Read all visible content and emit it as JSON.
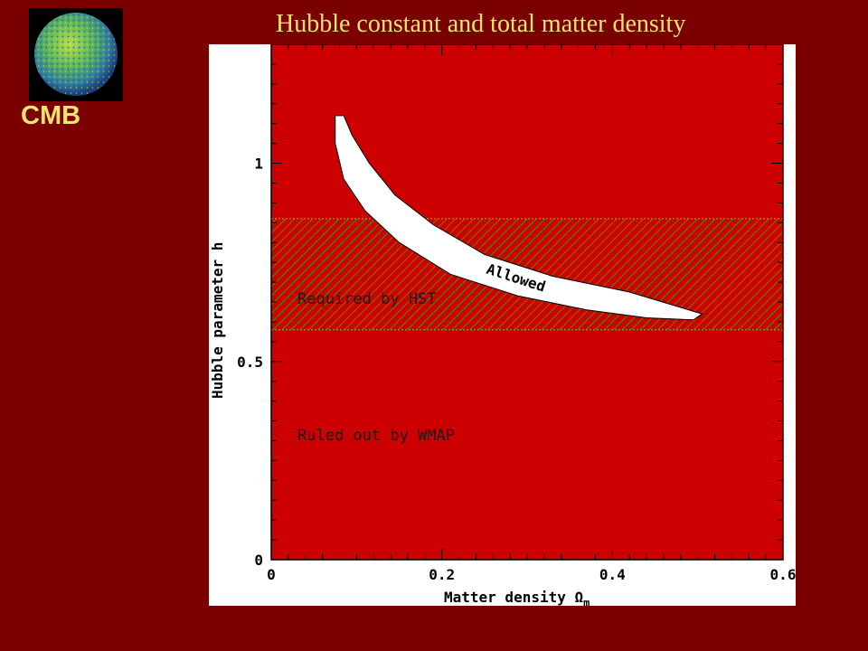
{
  "slide": {
    "title": "Hubble constant and total matter density",
    "logo_label": "CMB"
  },
  "colors": {
    "background": "#7a0000",
    "excluded_region": "#cc0000",
    "hatch": "#5a8a00",
    "title": "#f5e66b"
  },
  "chart_data": {
    "type": "area",
    "xlabel": "Matter density Ω",
    "xlabel_subscript": "m",
    "ylabel": "Hubble parameter h",
    "xlim": [
      0,
      0.6
    ],
    "ylim": [
      0,
      1.3
    ],
    "xticks": [
      "0",
      "0.2",
      "0.4",
      "0.6"
    ],
    "yticks": [
      "0",
      "0.5",
      "1"
    ],
    "regions": [
      {
        "name": "Ruled out by WMAP",
        "kind": "excluded"
      },
      {
        "name": "Required by HST",
        "kind": "hatched-band",
        "y_range": [
          0.58,
          0.86
        ]
      },
      {
        "name": "Allowed",
        "kind": "allowed-contour"
      }
    ],
    "allowed_contour": [
      [
        0.075,
        1.12
      ],
      [
        0.085,
        1.12
      ],
      [
        0.095,
        1.07
      ],
      [
        0.115,
        1.0
      ],
      [
        0.145,
        0.92
      ],
      [
        0.19,
        0.845
      ],
      [
        0.25,
        0.77
      ],
      [
        0.33,
        0.715
      ],
      [
        0.42,
        0.675
      ],
      [
        0.505,
        0.62
      ],
      [
        0.495,
        0.605
      ],
      [
        0.44,
        0.61
      ],
      [
        0.37,
        0.63
      ],
      [
        0.29,
        0.665
      ],
      [
        0.21,
        0.72
      ],
      [
        0.15,
        0.8
      ],
      [
        0.11,
        0.88
      ],
      [
        0.085,
        0.96
      ],
      [
        0.075,
        1.05
      ]
    ]
  }
}
